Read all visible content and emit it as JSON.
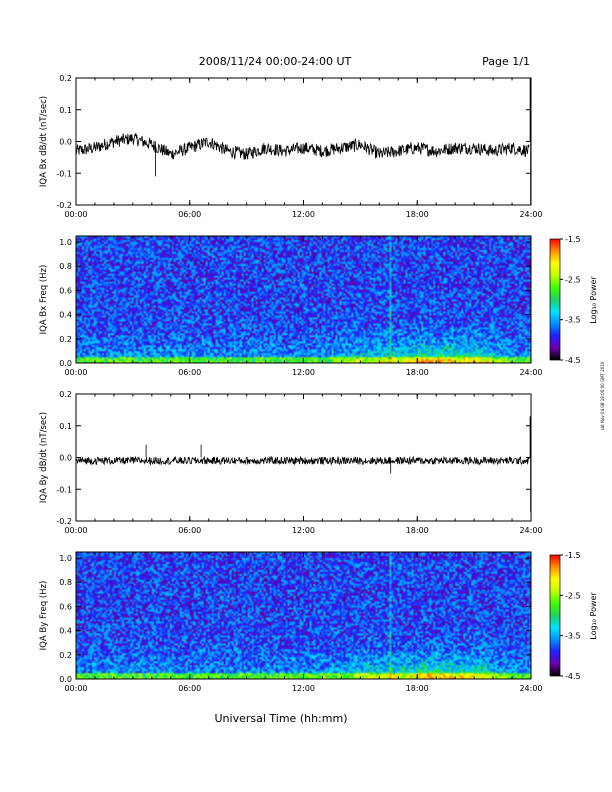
{
  "header": {
    "title": "2008/11/24  00:00-24:00 UT",
    "page": "Page 1/1"
  },
  "xlabel": "Universal Time (hh:mm)",
  "stamp": "sat Nov 04 08 18:00:00 GMT 2010",
  "colorbar": {
    "label": "Log₁₀ Power",
    "ticks": [
      "-1.5",
      "-2.5",
      "-3.5",
      "-4.5"
    ],
    "range": [
      -4.5,
      -1.5
    ],
    "colors": [
      "#000000",
      "#6a00a8",
      "#2020ff",
      "#0090ff",
      "#00e0ff",
      "#20d060",
      "#40ff00",
      "#c0ff00",
      "#ffff00",
      "#ff9000",
      "#ff0000"
    ]
  },
  "chart_data": [
    {
      "type": "line",
      "ylabel": "IQA Bx dB/dt (nT/sec)",
      "x_ticks": [
        "00:00",
        "06:00",
        "12:00",
        "18:00",
        "24:00"
      ],
      "xlim": [
        0,
        24
      ],
      "y_ticks": [
        "0.2",
        "0.1",
        "0.0",
        "-0.1",
        "-0.2"
      ],
      "ylim": [
        -0.2,
        0.2
      ],
      "series": [
        {
          "x": [
            0,
            1,
            2,
            3,
            4,
            5,
            6,
            7,
            8,
            9,
            10,
            11,
            12,
            13,
            14,
            15,
            16,
            17,
            18,
            19,
            20,
            21,
            22,
            23,
            23.9
          ],
          "values": [
            -0.03,
            -0.02,
            0.0,
            0.01,
            -0.01,
            -0.04,
            -0.02,
            0.0,
            -0.03,
            -0.04,
            -0.02,
            -0.03,
            -0.02,
            -0.03,
            -0.02,
            -0.01,
            -0.04,
            -0.03,
            -0.02,
            -0.03,
            -0.02,
            -0.02,
            -0.03,
            -0.02,
            -0.03
          ],
          "noise": 0.02,
          "spikes": [
            {
              "x": 4.2,
              "value": -0.11
            },
            {
              "x": 23.95,
              "value": 0.2
            },
            {
              "x": 23.98,
              "value": -0.2
            }
          ]
        }
      ]
    },
    {
      "type": "heatmap",
      "ylabel": "IQA Bx Freq (Hz)",
      "x_ticks": [
        "00:00",
        "06:00",
        "12:00",
        "18:00",
        "24:00"
      ],
      "xlim": [
        0,
        24
      ],
      "y_ticks": [
        "1.0",
        "0.8",
        "0.6",
        "0.4",
        "0.2",
        "0.0"
      ],
      "ylim": [
        0,
        1.05
      ],
      "zlim": [
        -4.5,
        -1.5
      ],
      "lines": [
        {
          "x": 16.6
        }
      ]
    },
    {
      "type": "line",
      "ylabel": "IQA By dB/dt (nT/sec)",
      "x_ticks": [
        "00:00",
        "06:00",
        "12:00",
        "18:00",
        "24:00"
      ],
      "xlim": [
        0,
        24
      ],
      "y_ticks": [
        "0.2",
        "0.1",
        "0.0",
        "-0.1",
        "-0.2"
      ],
      "ylim": [
        -0.2,
        0.2
      ],
      "series": [
        {
          "x": [
            0,
            2,
            4,
            6,
            8,
            12,
            16,
            20,
            23.9
          ],
          "values": [
            -0.01,
            -0.01,
            -0.01,
            -0.01,
            -0.01,
            -0.01,
            -0.01,
            -0.01,
            -0.01
          ],
          "noise": 0.012,
          "spikes": [
            {
              "x": 3.7,
              "value": 0.04
            },
            {
              "x": 6.6,
              "value": 0.04
            },
            {
              "x": 16.6,
              "value": -0.05
            },
            {
              "x": 23.95,
              "value": 0.13
            },
            {
              "x": 23.98,
              "value": -0.17
            }
          ]
        }
      ]
    },
    {
      "type": "heatmap",
      "ylabel": "IQA By Freq (Hz)",
      "x_ticks": [
        "00:00",
        "06:00",
        "12:00",
        "18:00",
        "24:00"
      ],
      "xlim": [
        0,
        24
      ],
      "y_ticks": [
        "1.0",
        "0.8",
        "0.6",
        "0.4",
        "0.2",
        "0.0"
      ],
      "ylim": [
        0,
        1.05
      ],
      "zlim": [
        -4.5,
        -1.5
      ],
      "lines": [
        {
          "x": 16.6
        }
      ]
    }
  ]
}
